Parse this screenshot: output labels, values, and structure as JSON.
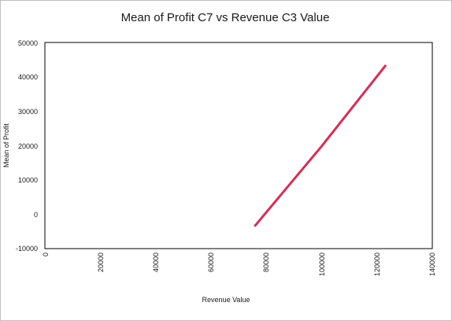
{
  "chart_data": {
    "type": "line",
    "title": "Mean of Profit C7 vs Revenue C3 Value",
    "xlabel": "Revenue Value",
    "ylabel": "Mean of Profit",
    "xlim": [
      0,
      140000
    ],
    "ylim": [
      -10000,
      50000
    ],
    "x_ticks": [
      "0",
      "20000",
      "40000",
      "60000",
      "80000",
      "100000",
      "120000",
      "140000"
    ],
    "y_ticks": [
      "50000",
      "40000",
      "30000",
      "20000",
      "10000",
      "0",
      "-10000"
    ],
    "grid": false,
    "legend": "none",
    "series": [
      {
        "color": "#d72e54",
        "points": [
          {
            "x": 76000,
            "y": -3300
          },
          {
            "x": 100000,
            "y": 19800
          },
          {
            "x": 123000,
            "y": 43200
          }
        ]
      }
    ]
  }
}
